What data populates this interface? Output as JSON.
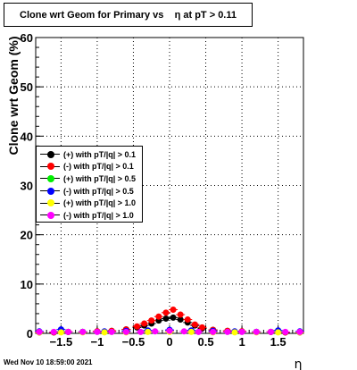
{
  "title": "Clone wrt Geom for Primary vs    η at pT > 0.11",
  "footer_timestamp": "Wed Nov 10 18:59:00 2021",
  "chart_data": {
    "type": "scatter",
    "title": "Clone wrt Geom for Primary vs    η at pT > 0.11",
    "xlabel": "η",
    "ylabel": "Clone wrt Geom (%)",
    "xlim": [
      -1.85,
      1.85
    ],
    "ylim": [
      0,
      60
    ],
    "x_ticks": [
      -1.5,
      -1,
      -0.5,
      0,
      0.5,
      1,
      1.5
    ],
    "x_tick_labels": [
      "−1.5",
      "−1",
      "−0.5",
      "0",
      "0.5",
      "1",
      "1.5"
    ],
    "y_ticks": [
      0,
      10,
      20,
      30,
      40,
      50,
      60
    ],
    "y_tick_labels": [
      "0",
      "10",
      "20",
      "30",
      "40",
      "50",
      "60"
    ],
    "grid": true,
    "legend_position": "left-middle",
    "series": [
      {
        "name": "(+) with pT/|q| > 0.1",
        "color": "#000000",
        "x": [
          -1.8,
          -1.6,
          -1.4,
          -1.2,
          -1.0,
          -0.8,
          -0.6,
          -0.45,
          -0.35,
          -0.25,
          -0.15,
          -0.05,
          0.05,
          0.15,
          0.25,
          0.35,
          0.45,
          0.6,
          0.8,
          1.0,
          1.2,
          1.4,
          1.6,
          1.8
        ],
        "y": [
          0.2,
          0.2,
          0.3,
          0.3,
          0.4,
          0.5,
          0.8,
          1.2,
          1.6,
          2.0,
          2.6,
          3.0,
          3.2,
          2.8,
          2.2,
          1.6,
          1.0,
          0.7,
          0.5,
          0.4,
          0.3,
          0.3,
          0.2,
          0.2
        ]
      },
      {
        "name": "(-) with pT/|q| > 0.1",
        "color": "#ff0000",
        "x": [
          -1.8,
          -1.6,
          -1.4,
          -1.2,
          -1.0,
          -0.8,
          -0.6,
          -0.45,
          -0.35,
          -0.25,
          -0.15,
          -0.05,
          0.05,
          0.15,
          0.25,
          0.35,
          0.45,
          0.6,
          0.8,
          1.0,
          1.2,
          1.4,
          1.6,
          1.8
        ],
        "y": [
          0.2,
          0.2,
          0.3,
          0.3,
          0.4,
          0.5,
          0.8,
          1.4,
          2.0,
          2.6,
          3.4,
          4.2,
          4.8,
          3.8,
          2.8,
          1.8,
          1.2,
          0.7,
          0.5,
          0.4,
          0.3,
          0.3,
          0.2,
          0.2
        ]
      },
      {
        "name": "(+) with pT/|q| > 0.5",
        "color": "#00ee00",
        "x": [
          -1.8,
          -1.5,
          -1.2,
          -0.9,
          -0.6,
          -0.3,
          0.0,
          0.3,
          0.6,
          0.9,
          1.2,
          1.5,
          1.8
        ],
        "y": [
          0.3,
          0.4,
          0.3,
          0.3,
          0.4,
          0.5,
          0.6,
          0.5,
          0.4,
          0.3,
          0.3,
          0.4,
          0.3
        ]
      },
      {
        "name": "(-) with pT/|q| > 0.5",
        "color": "#0000ff",
        "x": [
          -1.8,
          -1.5,
          -1.2,
          -0.9,
          -0.6,
          -0.3,
          0.0,
          0.3,
          0.6,
          0.9,
          1.2,
          1.5,
          1.8
        ],
        "y": [
          0.4,
          0.8,
          0.3,
          0.4,
          0.5,
          0.6,
          0.7,
          0.6,
          0.5,
          0.4,
          0.3,
          0.6,
          0.4
        ]
      },
      {
        "name": "(+) with pT/|q| > 1.0",
        "color": "#ffff00",
        "x": [
          -1.8,
          -1.5,
          -1.2,
          -0.9,
          -0.6,
          -0.3,
          0.0,
          0.3,
          0.6,
          0.9,
          1.2,
          1.5,
          1.8
        ],
        "y": [
          0.2,
          0.2,
          0.2,
          0.2,
          0.2,
          0.3,
          0.3,
          0.3,
          0.2,
          0.2,
          0.2,
          0.2,
          0.2
        ]
      },
      {
        "name": "(-) with pT/|q| > 1.0",
        "color": "#ff00ff",
        "x": [
          -1.8,
          -1.6,
          -1.4,
          -1.2,
          -1.0,
          -0.8,
          -0.6,
          -0.4,
          -0.2,
          0.0,
          0.2,
          0.4,
          0.6,
          0.8,
          1.0,
          1.2,
          1.4,
          1.6,
          1.8
        ],
        "y": [
          0.3,
          0.3,
          0.3,
          0.3,
          0.3,
          0.3,
          0.3,
          0.3,
          0.4,
          0.5,
          0.4,
          0.3,
          0.3,
          0.3,
          0.3,
          0.3,
          0.3,
          0.3,
          0.3
        ]
      }
    ]
  }
}
